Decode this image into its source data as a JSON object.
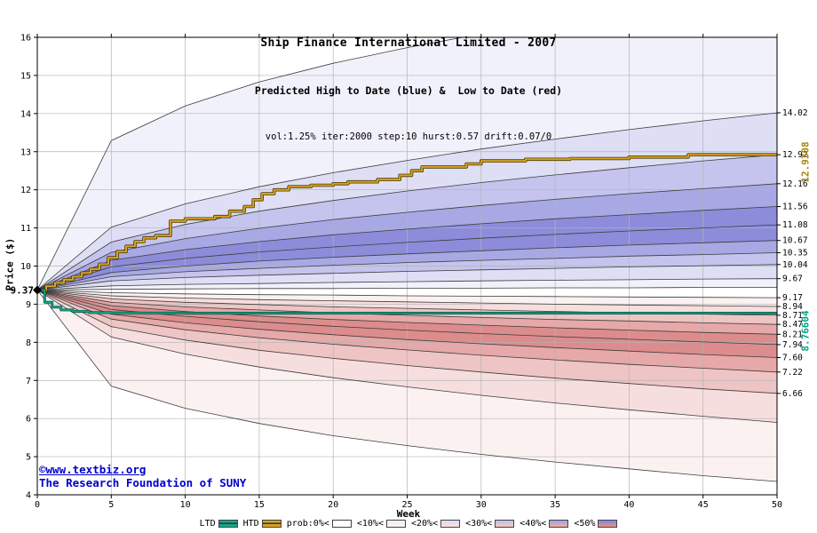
{
  "chart_data": {
    "type": "area",
    "variant": "fan-quantile",
    "title": "Ship Finance International Limited - 2007",
    "subtitle": "Predicted High to Date (blue) &  Low to Date (red)",
    "params_line": "vol:1.25% iter:2000 step:10 hurst:0.57 drift:0.07/0",
    "xlabel": "Week",
    "ylabel": "Price ($)",
    "x_range": [
      0,
      50
    ],
    "y_range": [
      4,
      16
    ],
    "x_ticks": [
      0,
      5,
      10,
      15,
      20,
      25,
      30,
      35,
      40,
      45,
      50
    ],
    "y_ticks": [
      4,
      5,
      6,
      7,
      8,
      9,
      10,
      11,
      12,
      13,
      14,
      15,
      16
    ],
    "start_week": 0,
    "start_price": 9.37,
    "start_price_label": "9.37",
    "weeks": [
      0,
      5,
      10,
      15,
      20,
      25,
      30,
      35,
      40,
      45,
      50
    ],
    "high_fan": {
      "band_shades": [
        1,
        2,
        3,
        4,
        5,
        5,
        4,
        3,
        2,
        1
      ],
      "boundaries": [
        {
          "q": "max",
          "label": null,
          "values": [
            9.37,
            13.29,
            14.2,
            14.83,
            15.32,
            15.73,
            16.09,
            16.41,
            16.7,
            16.96,
            17.2
          ]
        },
        {
          "q": "90%",
          "label": "14.02",
          "values": [
            9.37,
            11.02,
            11.63,
            12.08,
            12.45,
            12.77,
            13.07,
            13.33,
            13.58,
            13.81,
            14.02
          ]
        },
        {
          "q": "80%",
          "label": "12.92",
          "values": [
            9.37,
            10.63,
            11.09,
            11.44,
            11.72,
            11.97,
            12.19,
            12.39,
            12.58,
            12.76,
            12.92
          ]
        },
        {
          "q": "70%",
          "label": "12.16",
          "values": [
            9.37,
            10.36,
            10.72,
            10.99,
            11.22,
            11.41,
            11.59,
            11.75,
            11.9,
            12.03,
            12.16
          ]
        },
        {
          "q": "60%",
          "label": "11.56",
          "values": [
            9.37,
            10.15,
            10.43,
            10.64,
            10.82,
            10.97,
            11.11,
            11.24,
            11.35,
            11.46,
            11.56
          ]
        },
        {
          "q": "50%",
          "label": "11.08",
          "values": [
            9.37,
            9.98,
            10.2,
            10.37,
            10.5,
            10.62,
            10.73,
            10.83,
            10.92,
            11.0,
            11.08
          ]
        },
        {
          "q": "40%",
          "label": "10.67",
          "values": [
            9.37,
            9.83,
            10.0,
            10.13,
            10.23,
            10.32,
            10.4,
            10.48,
            10.55,
            10.61,
            10.67
          ]
        },
        {
          "q": "30%",
          "label": "10.35",
          "values": [
            9.37,
            9.72,
            9.85,
            9.94,
            10.02,
            10.09,
            10.15,
            10.2,
            10.26,
            10.3,
            10.35
          ]
        },
        {
          "q": "20%",
          "label": "10.04",
          "values": [
            9.37,
            9.61,
            9.7,
            9.76,
            9.81,
            9.86,
            9.9,
            9.94,
            9.98,
            10.01,
            10.04
          ]
        },
        {
          "q": "10%",
          "label": "9.67",
          "values": [
            9.37,
            9.48,
            9.52,
            9.54,
            9.57,
            9.59,
            9.61,
            9.63,
            9.64,
            9.66,
            9.67
          ]
        },
        {
          "q": "min",
          "label": null,
          "values": [
            9.37,
            9.39,
            9.4,
            9.41,
            9.41,
            9.42,
            9.42,
            9.43,
            9.43,
            9.44,
            9.44
          ]
        }
      ]
    },
    "low_fan": {
      "band_shades": [
        1,
        2,
        3,
        4,
        5,
        5,
        4,
        3,
        2,
        1
      ],
      "boundaries": [
        {
          "q": "max",
          "label": "9.17",
          "values": [
            9.37,
            9.3,
            9.27,
            9.25,
            9.24,
            9.22,
            9.21,
            9.2,
            9.19,
            9.18,
            9.17
          ]
        },
        {
          "q": "90%",
          "label": "8.94",
          "values": [
            9.37,
            9.22,
            9.16,
            9.12,
            9.09,
            9.06,
            9.03,
            9.0,
            8.98,
            8.96,
            8.94
          ]
        },
        {
          "q": "80%",
          "label": "8.71",
          "values": [
            9.37,
            9.14,
            9.05,
            8.99,
            8.93,
            8.89,
            8.85,
            8.81,
            8.77,
            8.74,
            8.71
          ]
        },
        {
          "q": "70%",
          "label": "8.47",
          "values": [
            9.37,
            9.05,
            8.93,
            8.85,
            8.77,
            8.71,
            8.65,
            8.6,
            8.56,
            8.51,
            8.47
          ]
        },
        {
          "q": "60%",
          "label": "8.21",
          "values": [
            9.37,
            8.96,
            8.81,
            8.69,
            8.6,
            8.52,
            8.45,
            8.38,
            8.32,
            8.26,
            8.21
          ]
        },
        {
          "q": "50%",
          "label": "7.94",
          "values": [
            9.37,
            8.86,
            8.68,
            8.54,
            8.42,
            8.32,
            8.23,
            8.15,
            8.08,
            8.01,
            7.94
          ]
        },
        {
          "q": "40%",
          "label": "7.60",
          "values": [
            9.37,
            8.74,
            8.51,
            8.34,
            8.2,
            8.07,
            7.96,
            7.86,
            7.77,
            7.68,
            7.6
          ]
        },
        {
          "q": "30%",
          "label": "7.22",
          "values": [
            9.37,
            8.61,
            8.33,
            8.12,
            7.95,
            7.8,
            7.66,
            7.54,
            7.42,
            7.32,
            7.22
          ]
        },
        {
          "q": "20%",
          "label": "6.66",
          "values": [
            9.37,
            8.41,
            8.06,
            7.79,
            7.58,
            7.39,
            7.22,
            7.06,
            6.92,
            6.78,
            6.66
          ]
        },
        {
          "q": "10%",
          "label": null,
          "values": [
            9.37,
            8.14,
            7.69,
            7.35,
            7.07,
            6.83,
            6.61,
            6.41,
            6.23,
            6.06,
            5.9
          ]
        },
        {
          "q": "min",
          "label": null,
          "values": [
            9.37,
            6.85,
            6.27,
            5.87,
            5.55,
            5.29,
            5.06,
            4.86,
            4.68,
            4.5,
            4.35
          ]
        }
      ]
    },
    "htd_line": {
      "name": "HTD",
      "final_value": 12.9308,
      "final_label": "12.9308",
      "points": [
        [
          0,
          9.37
        ],
        [
          0.6,
          9.47
        ],
        [
          1.2,
          9.56
        ],
        [
          1.8,
          9.64
        ],
        [
          2.4,
          9.72
        ],
        [
          3,
          9.82
        ],
        [
          3.6,
          9.92
        ],
        [
          4.2,
          10.05
        ],
        [
          4.8,
          10.22
        ],
        [
          5.4,
          10.38
        ],
        [
          6,
          10.52
        ],
        [
          6.6,
          10.64
        ],
        [
          7.2,
          10.74
        ],
        [
          8,
          10.8
        ],
        [
          9,
          11.18
        ],
        [
          10,
          11.24
        ],
        [
          12,
          11.3
        ],
        [
          13,
          11.44
        ],
        [
          14,
          11.56
        ],
        [
          14.6,
          11.74
        ],
        [
          15.2,
          11.9
        ],
        [
          16,
          12.0
        ],
        [
          17,
          12.08
        ],
        [
          18.5,
          12.12
        ],
        [
          20,
          12.16
        ],
        [
          21,
          12.21
        ],
        [
          23,
          12.27
        ],
        [
          24.5,
          12.38
        ],
        [
          25.3,
          12.5
        ],
        [
          26,
          12.6
        ],
        [
          29,
          12.68
        ],
        [
          30,
          12.76
        ],
        [
          33,
          12.8
        ],
        [
          36,
          12.82
        ],
        [
          40,
          12.86
        ],
        [
          44,
          12.92
        ],
        [
          50,
          12.93
        ]
      ]
    },
    "ltd_line": {
      "name": "LTD",
      "final_value": 8.76604,
      "final_label": "8.76604",
      "points": [
        [
          0,
          9.37
        ],
        [
          0.5,
          9.05
        ],
        [
          1,
          8.92
        ],
        [
          1.6,
          8.85
        ],
        [
          2.4,
          8.81
        ],
        [
          3.5,
          8.78
        ],
        [
          5,
          8.77
        ],
        [
          7,
          8.767
        ],
        [
          10,
          8.766
        ],
        [
          50,
          8.766
        ]
      ]
    }
  },
  "colors": {
    "htd": "#d7a322",
    "htd_edge": "#4a3a00",
    "ltd": "#17a78c",
    "ltd_edge": "#00513f",
    "grid": "#b4b4b4",
    "axis": "#000000",
    "boundary": "#3c3c3c",
    "blue_shades": [
      "#ffffff",
      "#f1f1fb",
      "#dedef5",
      "#c4c4ee",
      "#a8a8e4",
      "#8c8cda"
    ],
    "red_shades": [
      "#ffffff",
      "#fbf1f1",
      "#f7dede",
      "#efc4c4",
      "#e6a8a8",
      "#dc8c8c"
    ],
    "watermark": "#0000cc",
    "htd_label": "#a8820a",
    "ltd_label": "#00a186"
  },
  "legend": {
    "items": [
      {
        "label": "LTD",
        "type": "line",
        "color": "#17a78c"
      },
      {
        "label": "HTD",
        "type": "line",
        "color": "#d7a322"
      },
      {
        "label": "prob:0%<",
        "type": "band",
        "index": 0
      },
      {
        "label": "<10%<",
        "type": "band",
        "index": 1
      },
      {
        "label": "<20%<",
        "type": "band",
        "index": 2
      },
      {
        "label": "<30%<",
        "type": "band",
        "index": 3
      },
      {
        "label": "<40%<",
        "type": "band",
        "index": 4
      },
      {
        "label": "<50%",
        "type": "band",
        "index": 5
      }
    ]
  },
  "watermark": {
    "line1": "©www.textbiz.org",
    "line2": "The Research Foundation of SUNY"
  }
}
